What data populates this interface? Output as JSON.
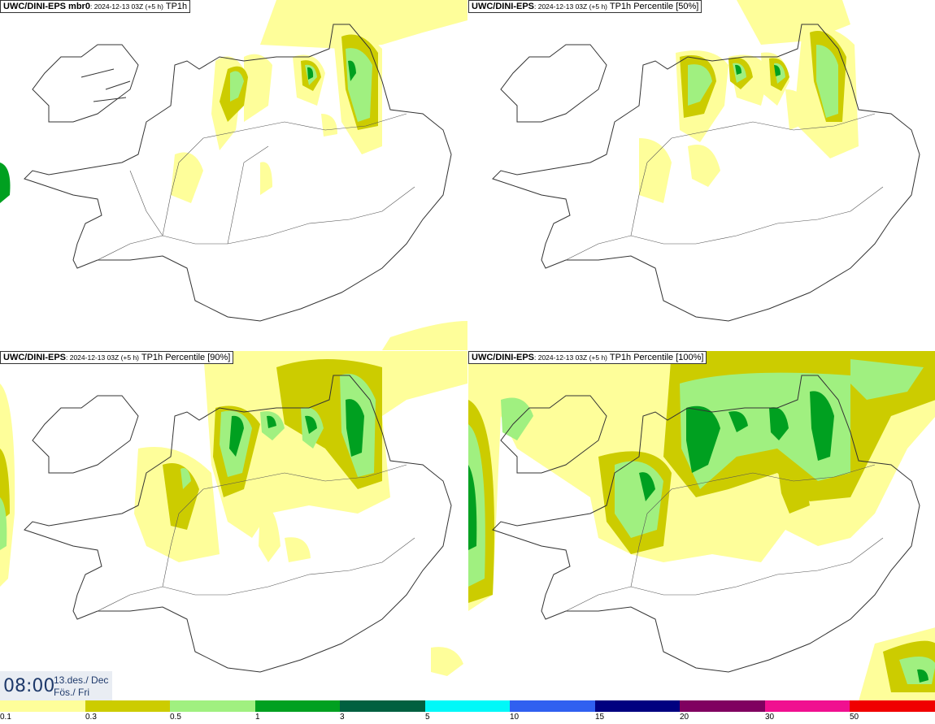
{
  "panels": [
    {
      "model": "UWC/DINI-EPS mbr0",
      "run": ": 2024-12-13 03Z (+5 h)",
      "param": "TP1h"
    },
    {
      "model": "UWC/DINI-EPS",
      "run": ": 2024-12-13 03Z (+5 h)",
      "param": "TP1h Percentile [50%]"
    },
    {
      "model": "UWC/DINI-EPS",
      "run": ": 2024-12-13 03Z (+5 h)",
      "param": "TP1h Percentile [90%]"
    },
    {
      "model": "UWC/DINI-EPS",
      "run": ": 2024-12-13 03Z (+5 h)",
      "param": "TP1h Percentile [100%]"
    }
  ],
  "clock": {
    "time": "08:00",
    "date_line1": "13.des./ Dec",
    "date_line2": "Fös./ Fri"
  },
  "legend": {
    "labels": [
      "0.1",
      "0.3",
      "0.5",
      "1",
      "3",
      "5",
      "10",
      "15",
      "20",
      "30",
      "50"
    ],
    "colors": [
      "#fefe9a",
      "#cccc00",
      "#a0f080",
      "#00a020",
      "#006040",
      "#00f8f8",
      "#3060f0",
      "#000080",
      "#800060",
      "#f01090",
      "#f00000"
    ]
  }
}
